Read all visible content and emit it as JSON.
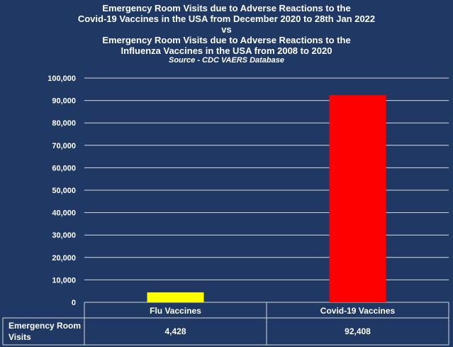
{
  "chart_data": {
    "type": "bar",
    "title_lines": [
      "Emergency Room Visits due to Adverse Reactions to the",
      "Covid-19 Vaccines in the USA from December 2020 to 28th Jan 2022",
      "vs",
      "Emergency Room Visits due to Adverse Reactions to the",
      "Influenza Vaccines in the USA  from 2008 to 2020"
    ],
    "subtitle": "Source - CDC VAERS Database",
    "categories": [
      "Flu Vaccines",
      "Covid-19 Vaccines"
    ],
    "series": [
      {
        "name": "Emergency Room Visits",
        "values": [
          4428,
          92408
        ],
        "colors": [
          "#ffff00",
          "#ff0000"
        ]
      }
    ],
    "ylim": [
      0,
      100000
    ],
    "yticks": [
      "0",
      "10,000",
      "20,000",
      "30,000",
      "40,000",
      "50,000",
      "60,000",
      "70,000",
      "80,000",
      "90,000",
      "100,000"
    ],
    "grid": true,
    "table": {
      "row_label": "Emergency Room Visits",
      "values": [
        "4,428",
        "92,408"
      ]
    }
  }
}
